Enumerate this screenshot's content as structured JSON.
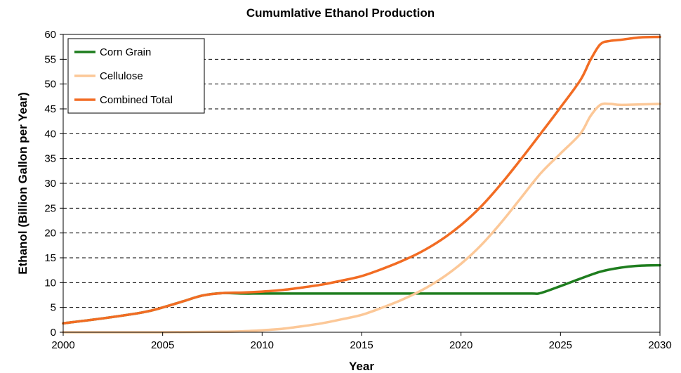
{
  "chart_data": {
    "type": "line",
    "title": "Cumumlative Ethanol Production",
    "xlabel": "Year",
    "ylabel": "Ethanol (Billion Gallon per Year)",
    "xlim": [
      2000,
      2030
    ],
    "ylim": [
      0,
      60
    ],
    "x_ticks": [
      "2000",
      "2005",
      "2010",
      "2015",
      "2020",
      "2025",
      "2030"
    ],
    "y_ticks": [
      "0",
      "5",
      "10",
      "15",
      "20",
      "25",
      "30",
      "35",
      "40",
      "45",
      "50",
      "55",
      "60"
    ],
    "grid": "horizontal dashed",
    "legend_position": "top-left",
    "series": [
      {
        "name": "Corn Grain",
        "color": "#1e7d1e",
        "points": [
          [
            2000,
            1.8
          ],
          [
            2002,
            2.8
          ],
          [
            2004,
            4.0
          ],
          [
            2005,
            5.0
          ],
          [
            2006,
            6.2
          ],
          [
            2007,
            7.4
          ],
          [
            2008,
            7.9
          ],
          [
            2009,
            7.8
          ],
          [
            2010,
            7.8
          ],
          [
            2012,
            7.8
          ],
          [
            2015,
            7.8
          ],
          [
            2018,
            7.8
          ],
          [
            2021,
            7.8
          ],
          [
            2023.5,
            7.8
          ],
          [
            2024,
            7.9
          ],
          [
            2025,
            9.3
          ],
          [
            2026,
            10.8
          ],
          [
            2027,
            12.2
          ],
          [
            2028,
            13.0
          ],
          [
            2029,
            13.4
          ],
          [
            2030,
            13.5
          ]
        ]
      },
      {
        "name": "Cellulose",
        "color": "#fcc898",
        "points": [
          [
            2000,
            0
          ],
          [
            2005,
            0
          ],
          [
            2008,
            0.1
          ],
          [
            2009,
            0.2
          ],
          [
            2010,
            0.4
          ],
          [
            2011,
            0.7
          ],
          [
            2012,
            1.2
          ],
          [
            2013,
            1.8
          ],
          [
            2014,
            2.6
          ],
          [
            2015,
            3.5
          ],
          [
            2016,
            4.9
          ],
          [
            2017,
            6.5
          ],
          [
            2018,
            8.4
          ],
          [
            2019,
            10.8
          ],
          [
            2020,
            13.8
          ],
          [
            2021,
            17.5
          ],
          [
            2022,
            22.0
          ],
          [
            2023,
            27.0
          ],
          [
            2024,
            32.0
          ],
          [
            2025,
            36.0
          ],
          [
            2026,
            40.0
          ],
          [
            2026.5,
            43.5
          ],
          [
            2027,
            45.8
          ],
          [
            2027.5,
            46.0
          ],
          [
            2028,
            45.8
          ],
          [
            2029,
            45.9
          ],
          [
            2030,
            46.0
          ]
        ]
      },
      {
        "name": "Combined Total",
        "color": "#f26c23",
        "points": [
          [
            2000,
            1.8
          ],
          [
            2002,
            2.8
          ],
          [
            2004,
            4.0
          ],
          [
            2005,
            5.0
          ],
          [
            2006,
            6.2
          ],
          [
            2007,
            7.4
          ],
          [
            2008,
            7.9
          ],
          [
            2009,
            8.0
          ],
          [
            2010,
            8.2
          ],
          [
            2011,
            8.5
          ],
          [
            2012,
            9.0
          ],
          [
            2013,
            9.6
          ],
          [
            2014,
            10.4
          ],
          [
            2015,
            11.3
          ],
          [
            2016,
            12.7
          ],
          [
            2017,
            14.3
          ],
          [
            2018,
            16.2
          ],
          [
            2019,
            18.6
          ],
          [
            2020,
            21.6
          ],
          [
            2021,
            25.3
          ],
          [
            2022,
            29.8
          ],
          [
            2023,
            34.8
          ],
          [
            2024,
            40.0
          ],
          [
            2025,
            45.3
          ],
          [
            2026,
            50.8
          ],
          [
            2026.5,
            54.8
          ],
          [
            2027,
            58.0
          ],
          [
            2027.5,
            58.7
          ],
          [
            2028,
            58.9
          ],
          [
            2029,
            59.4
          ],
          [
            2030,
            59.5
          ]
        ]
      }
    ]
  }
}
